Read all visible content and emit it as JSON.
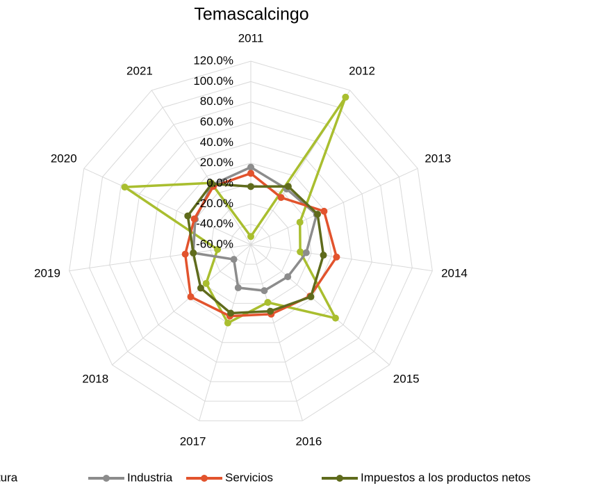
{
  "chart_data": {
    "type": "radar",
    "title": "Temascalcingo",
    "categories": [
      "2011",
      "2012",
      "2013",
      "2014",
      "2015",
      "2016",
      "2017",
      "2018",
      "2019",
      "2020",
      "2021"
    ],
    "ylim": [
      -60,
      120
    ],
    "yticks": [
      {
        "value": -60,
        "label": "-60.0%"
      },
      {
        "value": -40,
        "label": "-40.0%"
      },
      {
        "value": -20,
        "label": "-20.0%"
      },
      {
        "value": 0,
        "label": "0.0%"
      },
      {
        "value": 20,
        "label": "20.0%"
      },
      {
        "value": 40,
        "label": "40.0%"
      },
      {
        "value": 60,
        "label": "60.0%"
      },
      {
        "value": 80,
        "label": "80.0%"
      },
      {
        "value": 100,
        "label": "100.0%"
      },
      {
        "value": 120,
        "label": "120.0%"
      }
    ],
    "grid": true,
    "legend": "bottom",
    "series": [
      {
        "name": "Agricultura",
        "color": "#a9be2f",
        "values": [
          -52,
          112,
          -7,
          -11,
          50,
          -1,
          20,
          -2,
          -27,
          76,
          12
        ]
      },
      {
        "name": "Industria",
        "color": "#8c8c8c",
        "values": [
          16,
          5,
          11,
          -5,
          -12,
          -13,
          -16,
          -38,
          -3,
          0,
          10
        ]
      },
      {
        "name": "Servicios",
        "color": "#e2532d",
        "values": [
          10,
          -5,
          19,
          25,
          17,
          11,
          13,
          18,
          5,
          1,
          8
        ]
      },
      {
        "name": "Impuestos a los productos netos",
        "color": "#5f6b1c",
        "values": [
          -3,
          8,
          12,
          12,
          18,
          8,
          10,
          5,
          -3,
          8,
          11
        ]
      }
    ]
  }
}
